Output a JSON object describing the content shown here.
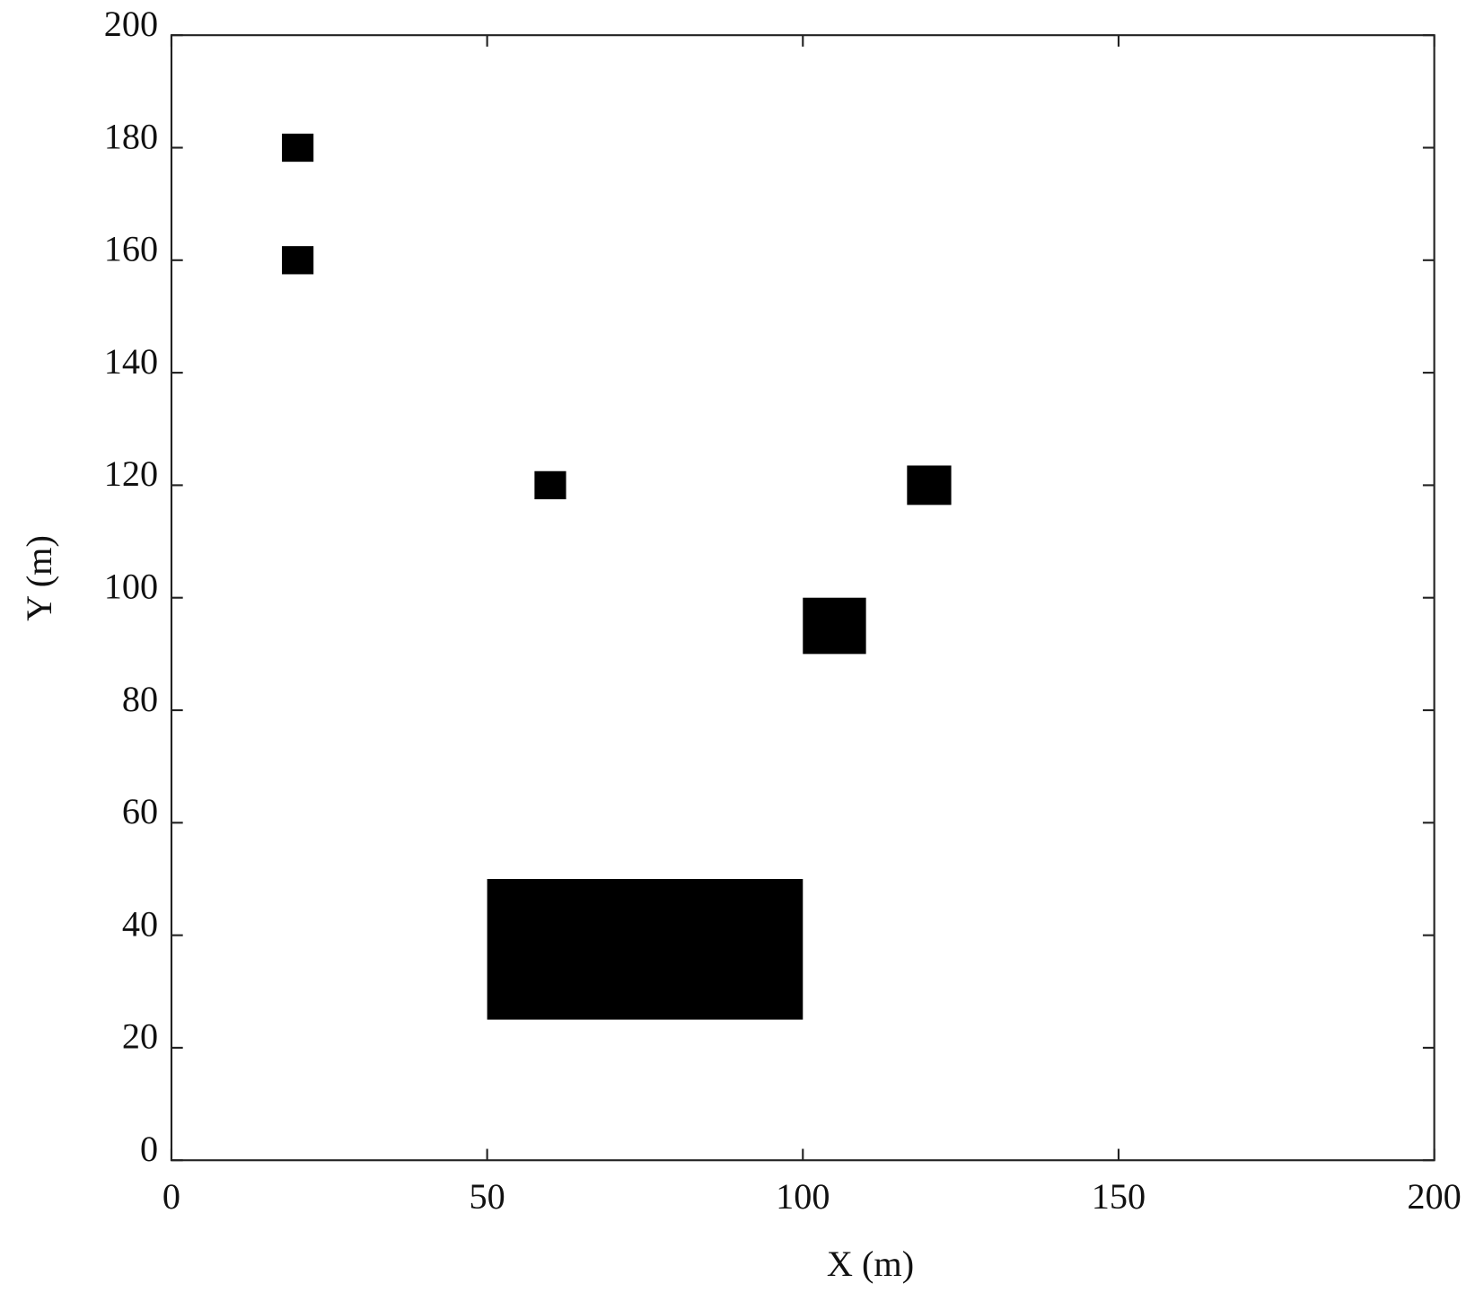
{
  "chart_data": {
    "type": "rectangles",
    "x_label": "X (m)",
    "y_label": "Y (m)",
    "xlim": [
      0,
      200
    ],
    "ylim": [
      0,
      200
    ],
    "xticks": [
      0,
      50,
      100,
      150,
      200
    ],
    "yticks": [
      0,
      20,
      40,
      60,
      80,
      100,
      120,
      140,
      160,
      180,
      200
    ],
    "color": "#000000",
    "rects": [
      {
        "x": [
          17.5,
          22.5
        ],
        "y": [
          177.5,
          182.5
        ]
      },
      {
        "x": [
          17.5,
          22.5
        ],
        "y": [
          157.5,
          162.5
        ]
      },
      {
        "x": [
          57.5,
          62.5
        ],
        "y": [
          117.5,
          122.5
        ]
      },
      {
        "x": [
          116.5,
          123.5
        ],
        "y": [
          116.5,
          123.5
        ]
      },
      {
        "x": [
          100,
          110
        ],
        "y": [
          90,
          100
        ]
      },
      {
        "x": [
          50,
          100
        ],
        "y": [
          25,
          50
        ]
      }
    ]
  }
}
